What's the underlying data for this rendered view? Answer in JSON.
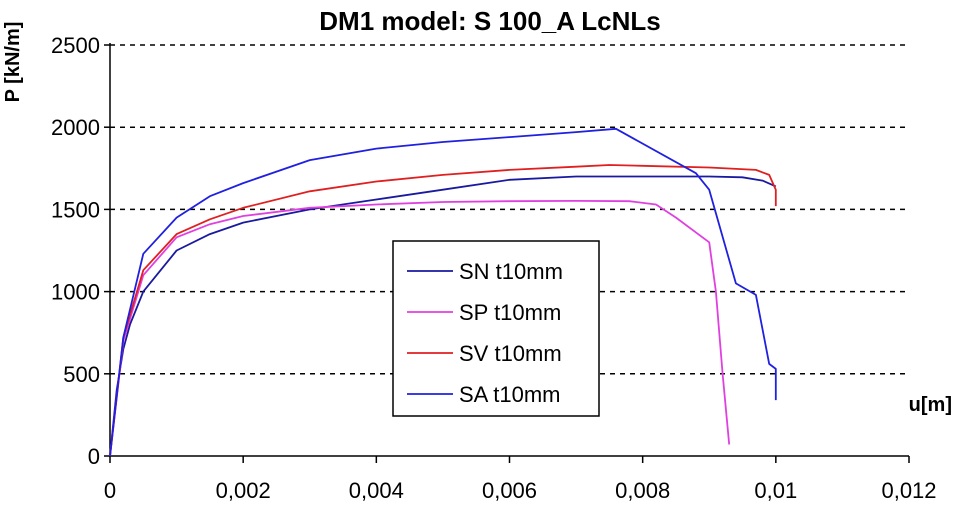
{
  "chart_data": {
    "type": "line",
    "title": "DM1 model: S 100_A LcNLs",
    "xlabel": "u[m]",
    "ylabel": "P [kN/m]",
    "xlim": [
      0,
      0.012
    ],
    "ylim": [
      0,
      2500
    ],
    "x_ticks": [
      0,
      0.002,
      0.004,
      0.006,
      0.008,
      0.01,
      0.012
    ],
    "x_tick_labels": [
      "0",
      "0,002",
      "0,004",
      "0,006",
      "0,008",
      "0,01",
      "0,012"
    ],
    "y_ticks": [
      0,
      500,
      1000,
      1500,
      2000,
      2500
    ],
    "y_tick_labels": [
      "0",
      "500",
      "1000",
      "1500",
      "2000",
      "2500"
    ],
    "grid": "horizontal dashed",
    "legend_position": "center",
    "series": [
      {
        "name": "SN t10mm",
        "color": "#1a1aa0",
        "x": [
          0,
          0.0001,
          0.0002,
          0.0003,
          0.0005,
          0.001,
          0.0015,
          0.002,
          0.003,
          0.004,
          0.005,
          0.006,
          0.007,
          0.008,
          0.009,
          0.0095,
          0.0098,
          0.01
        ],
        "y": [
          0,
          400,
          650,
          800,
          1000,
          1250,
          1350,
          1420,
          1500,
          1560,
          1620,
          1680,
          1700,
          1700,
          1700,
          1695,
          1675,
          1640
        ]
      },
      {
        "name": "SP t10mm",
        "color": "#e040e0",
        "x": [
          0,
          0.0002,
          0.0005,
          0.001,
          0.0015,
          0.002,
          0.003,
          0.004,
          0.005,
          0.006,
          0.007,
          0.0078,
          0.0082,
          0.0085,
          0.009,
          0.0091,
          0.0092,
          0.0093
        ],
        "y": [
          0,
          700,
          1100,
          1330,
          1410,
          1460,
          1510,
          1530,
          1545,
          1550,
          1552,
          1550,
          1530,
          1450,
          1300,
          1000,
          500,
          70
        ]
      },
      {
        "name": "SV t10mm",
        "color": "#e02020",
        "x": [
          0,
          0.0002,
          0.0005,
          0.001,
          0.0015,
          0.002,
          0.003,
          0.004,
          0.005,
          0.006,
          0.007,
          0.0075,
          0.008,
          0.009,
          0.0097,
          0.0099,
          0.01,
          0.01
        ],
        "y": [
          0,
          720,
          1130,
          1350,
          1440,
          1510,
          1610,
          1670,
          1710,
          1740,
          1760,
          1770,
          1765,
          1755,
          1740,
          1710,
          1620,
          1520
        ]
      },
      {
        "name": "SA t10mm",
        "color": "#2020e0",
        "x": [
          0,
          0.0002,
          0.0005,
          0.001,
          0.0015,
          0.002,
          0.003,
          0.004,
          0.005,
          0.006,
          0.007,
          0.0076,
          0.0088,
          0.009,
          0.0094,
          0.0097,
          0.0099,
          0.01,
          0.01
        ],
        "y": [
          0,
          720,
          1230,
          1450,
          1580,
          1660,
          1800,
          1870,
          1910,
          1940,
          1970,
          1990,
          1720,
          1620,
          1050,
          980,
          560,
          530,
          340
        ]
      }
    ]
  }
}
